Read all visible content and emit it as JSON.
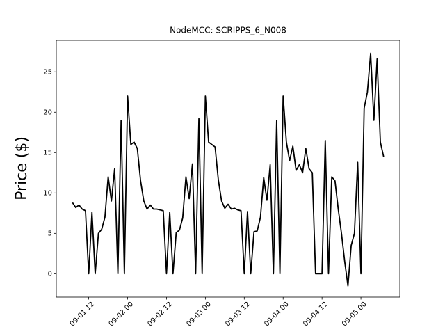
{
  "chart_data": {
    "type": "line",
    "title": "NodeMCC: SCRIPPS_6_N008",
    "y_label": "Price ($)",
    "x": [
      "09-01 07",
      "09-01 08",
      "09-01 09",
      "09-01 10",
      "09-01 11",
      "09-01 12",
      "09-01 13",
      "09-01 14",
      "09-01 15",
      "09-01 16",
      "09-01 17",
      "09-01 18",
      "09-01 19",
      "09-01 20",
      "09-01 21",
      "09-01 22",
      "09-01 23",
      "09-02 00",
      "09-02 01",
      "09-02 02",
      "09-02 03",
      "09-02 04",
      "09-02 05",
      "09-02 06",
      "09-02 07",
      "09-02 08",
      "09-02 09",
      "09-02 10",
      "09-02 11",
      "09-02 12",
      "09-02 13",
      "09-02 14",
      "09-02 15",
      "09-02 16",
      "09-02 17",
      "09-02 18",
      "09-02 19",
      "09-02 20",
      "09-02 21",
      "09-02 22",
      "09-02 23",
      "09-03 00",
      "09-03 01",
      "09-03 02",
      "09-03 03",
      "09-03 04",
      "09-03 05",
      "09-03 06",
      "09-03 07",
      "09-03 08",
      "09-03 09",
      "09-03 10",
      "09-03 11",
      "09-03 12",
      "09-03 13",
      "09-03 14",
      "09-03 15",
      "09-03 16",
      "09-03 17",
      "09-03 18",
      "09-03 19",
      "09-03 20",
      "09-03 21",
      "09-03 22",
      "09-03 23",
      "09-04 00",
      "09-04 01",
      "09-04 02",
      "09-04 03",
      "09-04 04",
      "09-04 05",
      "09-04 06",
      "09-04 07",
      "09-04 08",
      "09-04 09",
      "09-04 10",
      "09-04 11",
      "09-04 12",
      "09-04 13",
      "09-04 14",
      "09-04 15",
      "09-04 16",
      "09-04 17",
      "09-04 18",
      "09-04 19",
      "09-04 20",
      "09-04 21",
      "09-04 22",
      "09-04 23",
      "09-05 00",
      "09-05 01",
      "09-05 02",
      "09-05 03",
      "09-05 04",
      "09-05 05",
      "09-05 06",
      "09-05 07"
    ],
    "series": [
      {
        "color": "#000000",
        "values": [
          8.8,
          8.2,
          8.5,
          8.0,
          7.8,
          0,
          7.6,
          0,
          5.0,
          5.5,
          7.0,
          12.0,
          9.0,
          13.0,
          0,
          19.0,
          0,
          22.0,
          16.0,
          16.3,
          15.5,
          11.5,
          9.0,
          8.0,
          8.5,
          8.0,
          8.0,
          7.9,
          7.8,
          0,
          7.6,
          0,
          5.1,
          5.4,
          6.9,
          12.0,
          9.3,
          13.6,
          0,
          19.2,
          0,
          22.0,
          16.3,
          16.0,
          15.7,
          11.6,
          9.0,
          8.1,
          8.6,
          8.0,
          8.1,
          7.9,
          7.8,
          0,
          7.7,
          0,
          5.2,
          5.3,
          7.0,
          11.9,
          9.1,
          13.5,
          0,
          19.0,
          0,
          22.0,
          16.3,
          14.0,
          15.8,
          12.8,
          13.5,
          12.5,
          15.5,
          13.0,
          12.5,
          0,
          0,
          0,
          16.5,
          0,
          12.0,
          11.5,
          8.0,
          5.0,
          1.5,
          -1.5,
          3.5,
          5.0,
          13.8,
          0,
          20.5,
          22.5,
          27.3,
          19.0,
          26.6,
          16.3,
          14.5
        ]
      }
    ],
    "xlim": [
      "09-01 02",
      "09-05 12"
    ],
    "xticks": [
      "09-01 12",
      "09-02 00",
      "09-02 12",
      "09-03 00",
      "09-03 12",
      "09-04 00",
      "09-04 12",
      "09-05 00"
    ],
    "ylim": [
      -2.9,
      28.9
    ],
    "yticks": [
      0,
      5,
      10,
      15,
      20,
      25
    ]
  }
}
